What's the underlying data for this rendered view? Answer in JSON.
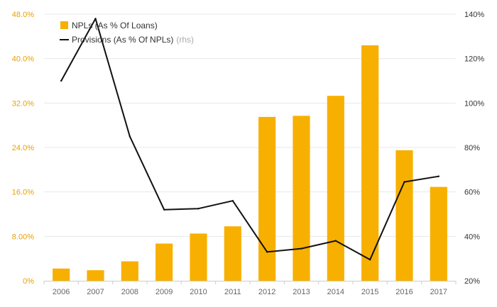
{
  "colors": {
    "bar": "#F7B000",
    "line": "#111111",
    "left_axis_text": "#E8A000",
    "right_axis_text": "#333333",
    "grid": "#e8e8e8"
  },
  "chart_data": {
    "type": "bar",
    "categories": [
      "2006",
      "2007",
      "2008",
      "2009",
      "2010",
      "2011",
      "2012",
      "2013",
      "2014",
      "2015",
      "2016",
      "2017"
    ],
    "series": [
      {
        "name": "NPLs (As % Of Loans)",
        "type": "bar",
        "axis": "left",
        "values": [
          2.2,
          1.9,
          3.5,
          6.7,
          8.5,
          9.8,
          29.5,
          29.7,
          33.3,
          42.4,
          23.5,
          16.9
        ]
      },
      {
        "name": "Provisions (As % Of NPLs)",
        "name_suffix": "(rhs)",
        "type": "line",
        "axis": "right",
        "values": [
          110,
          138,
          85,
          52,
          52.5,
          56,
          33,
          34.5,
          38,
          29.5,
          64.5,
          67
        ]
      }
    ],
    "y_left": {
      "ylim": [
        0,
        48
      ],
      "ticks": [
        0,
        8,
        16,
        24,
        32,
        40,
        48
      ],
      "tick_labels": [
        "0%",
        "8.00%",
        "16.0%",
        "24.0%",
        "32.0%",
        "40.0%",
        "48.0%"
      ]
    },
    "y_right": {
      "ylim": [
        20,
        140
      ],
      "ticks": [
        20,
        40,
        60,
        80,
        100,
        120,
        140
      ],
      "tick_labels": [
        "20%",
        "40%",
        "60%",
        "80%",
        "100%",
        "120%",
        "140%"
      ]
    },
    "grid": true,
    "legend": "top-left",
    "title": "",
    "xlabel": "",
    "ylabel": ""
  }
}
